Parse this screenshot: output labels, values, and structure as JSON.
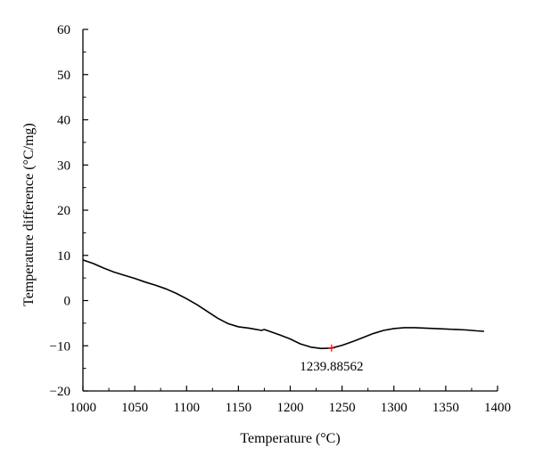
{
  "chart_data": {
    "type": "line",
    "title": "",
    "xlabel": "Temperature (°C)",
    "ylabel": "Temperature difference (°C/mg)",
    "xlim": [
      1000,
      1400
    ],
    "ylim": [
      -20,
      60
    ],
    "x_ticks": [
      1000,
      1050,
      1100,
      1150,
      1200,
      1250,
      1300,
      1350,
      1400
    ],
    "y_ticks": [
      -20,
      -10,
      0,
      10,
      20,
      30,
      40,
      50,
      60
    ],
    "grid": false,
    "legend": "none",
    "series": [
      {
        "color": "#000000",
        "x": [
          1000,
          1010,
          1020,
          1030,
          1040,
          1050,
          1060,
          1070,
          1080,
          1090,
          1100,
          1110,
          1120,
          1130,
          1140,
          1150,
          1160,
          1165,
          1170,
          1172,
          1175,
          1180,
          1190,
          1200,
          1210,
          1220,
          1230,
          1239.88562,
          1250,
          1260,
          1270,
          1280,
          1290,
          1300,
          1310,
          1320,
          1330,
          1340,
          1350,
          1360,
          1370,
          1380,
          1387
        ],
        "y": [
          9.0,
          8.2,
          7.2,
          6.3,
          5.6,
          4.9,
          4.1,
          3.4,
          2.6,
          1.6,
          0.4,
          -0.9,
          -2.4,
          -3.9,
          -5.1,
          -5.8,
          -6.1,
          -6.3,
          -6.5,
          -6.6,
          -6.4,
          -6.8,
          -7.6,
          -8.5,
          -9.6,
          -10.3,
          -10.6,
          -10.5,
          -9.9,
          -9.1,
          -8.2,
          -7.3,
          -6.6,
          -6.2,
          -6.0,
          -6.0,
          -6.1,
          -6.2,
          -6.3,
          -6.4,
          -6.5,
          -6.7,
          -6.8
        ]
      }
    ],
    "annotations": [
      {
        "text": "1239.88562",
        "x": 1239.88562,
        "y": -10.5,
        "marker_color": "#ff0000"
      }
    ]
  }
}
